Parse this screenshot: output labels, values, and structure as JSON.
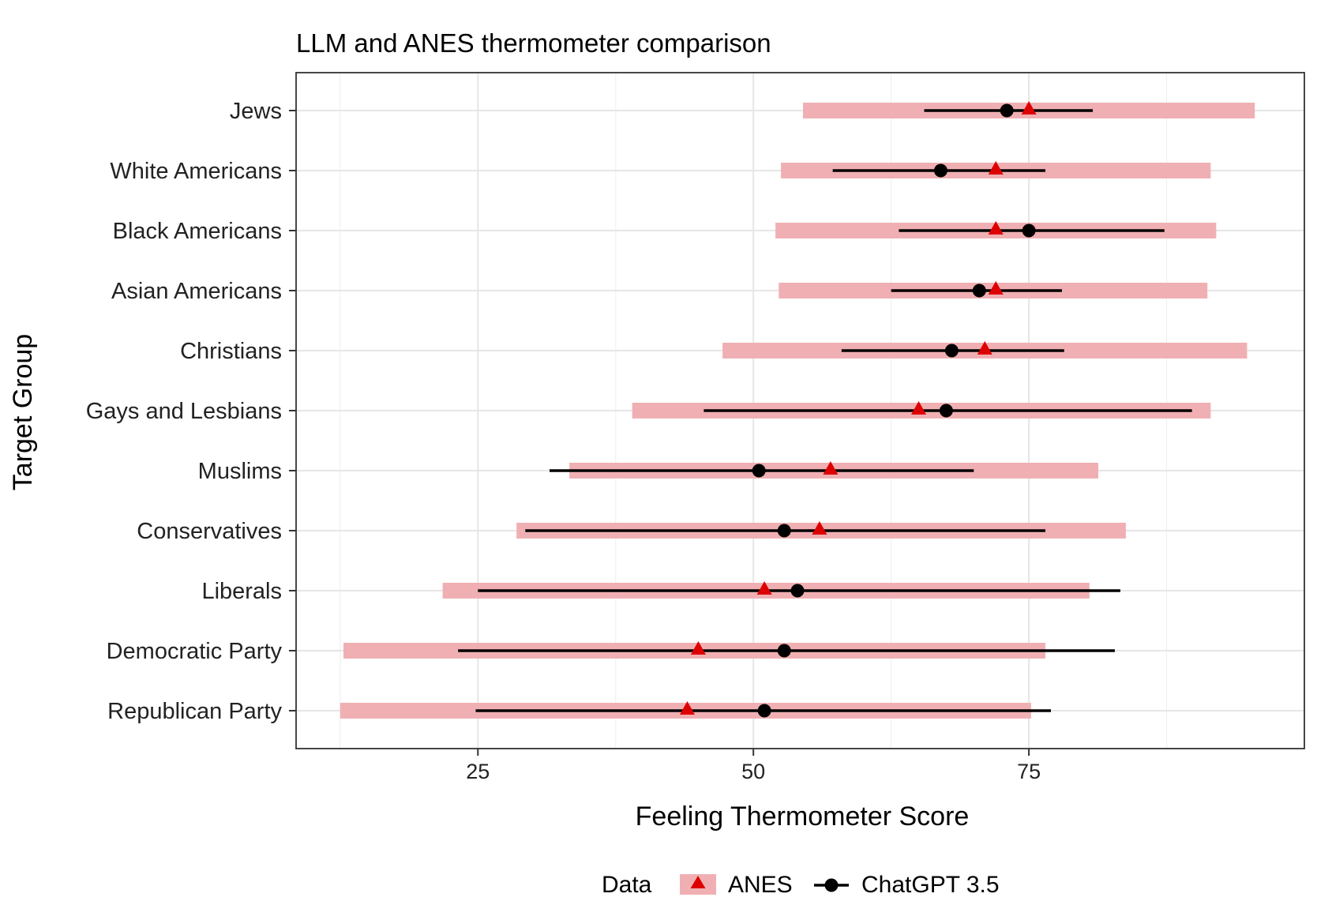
{
  "chart_data": {
    "type": "scatter",
    "title": "LLM and ANES thermometer comparison",
    "xlabel": "Feeling Thermometer Score",
    "ylabel": "Target Group",
    "xlim": [
      8.5,
      100
    ],
    "xticks": [
      25,
      50,
      75
    ],
    "grid": true,
    "legend_position": "bottom",
    "legend_title": "Data",
    "categories": [
      "Jews",
      "White Americans",
      "Black Americans",
      "Asian Americans",
      "Christians",
      "Gays and Lesbians",
      "Muslims",
      "Conservatives",
      "Liberals",
      "Democratic Party",
      "Republican Party"
    ],
    "series": [
      {
        "name": "ANES",
        "marker": "triangle",
        "color": "#dd0000",
        "band_color": "#f0b0b3",
        "values": [
          75,
          72,
          72,
          72,
          71,
          65,
          57,
          56,
          51,
          45,
          44
        ],
        "low": [
          54.5,
          52.5,
          52,
          52.3,
          47.2,
          39,
          33.3,
          28.5,
          21.8,
          12.8,
          12.5
        ],
        "high": [
          95.5,
          91.5,
          92,
          91.2,
          94.8,
          91.5,
          81.3,
          83.8,
          80.5,
          76.5,
          75.2
        ]
      },
      {
        "name": "ChatGPT 3.5",
        "marker": "circle",
        "color": "#000000",
        "values": [
          73,
          67,
          75,
          70.5,
          68,
          67.5,
          50.5,
          52.8,
          54,
          52.8,
          51
        ],
        "low": [
          65.5,
          57.2,
          63.2,
          62.5,
          58,
          45.5,
          31.5,
          29.3,
          25,
          23.2,
          24.8
        ],
        "high": [
          80.8,
          76.5,
          87.3,
          78,
          78.2,
          89.8,
          70,
          76.5,
          83.3,
          82.8,
          77
        ]
      }
    ]
  }
}
